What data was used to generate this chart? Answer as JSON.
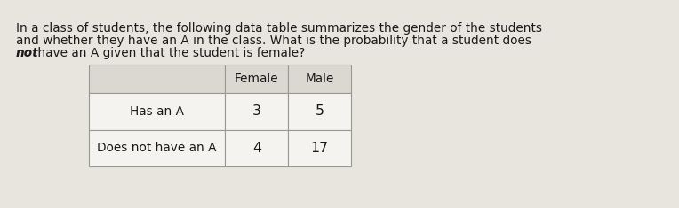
{
  "bg_color": "#e8e4de",
  "card_color": "#f5f3f0",
  "paragraph_lines": [
    "In a class of students, the following data table summarizes the gender of the students",
    "and whether they have an A in the class. What is the probability that a student does",
    " have an A given that the student is female?"
  ],
  "line3_italic": "not",
  "line3_rest": " have an A given that the student is female?",
  "table_col_headers": [
    "Female",
    "Male"
  ],
  "table_row_headers": [
    "Has an A",
    "Does not have an A"
  ],
  "table_data": [
    [
      3,
      5
    ],
    [
      4,
      17
    ]
  ],
  "font_size_para": 9.8,
  "font_size_table": 9.8,
  "table_header_bg": "#dbd8d2",
  "table_cell_bg": "#f5f3f0",
  "table_border_color": "#999994"
}
